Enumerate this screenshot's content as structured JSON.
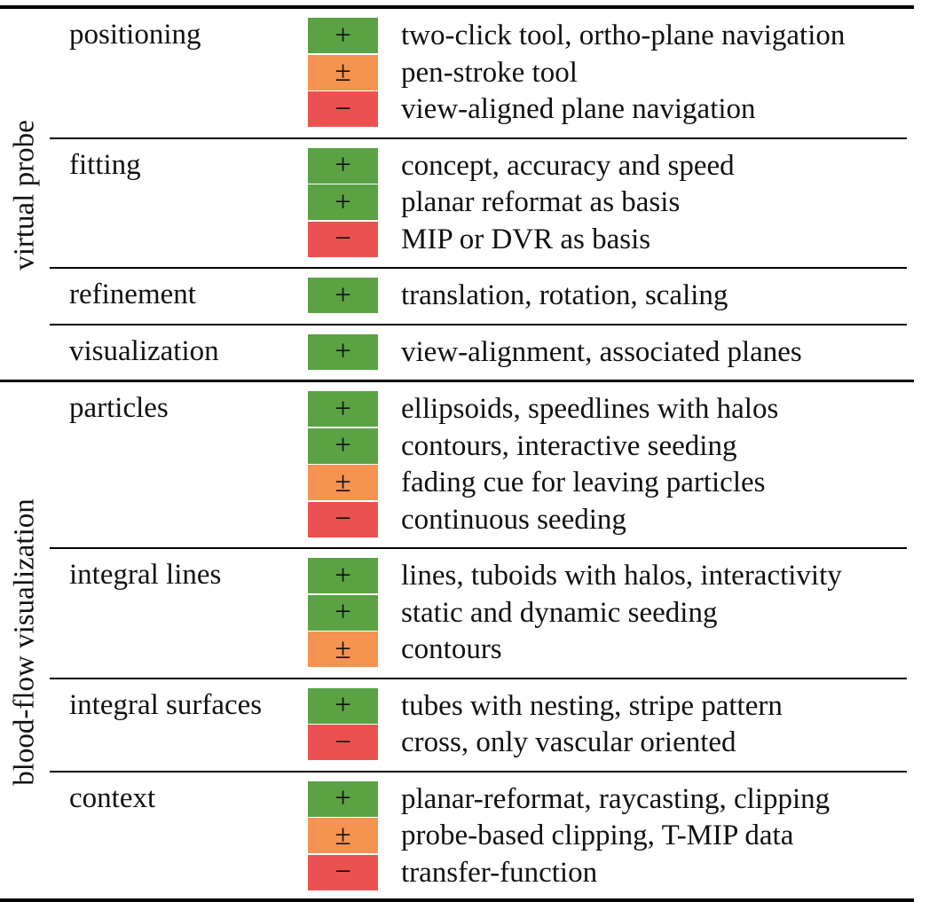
{
  "colors": {
    "plus": "#5aa244",
    "plusminus": "#f69350",
    "minus": "#ea5252"
  },
  "symbols": {
    "plus": "+",
    "plusminus": "±",
    "minus": "−"
  },
  "groups": [
    {
      "label": "virtual probe",
      "categories": [
        {
          "name": "positioning",
          "rows": [
            {
              "rating": "plus",
              "text": "two-click tool, ortho-plane navigation"
            },
            {
              "rating": "plusminus",
              "text": "pen-stroke tool"
            },
            {
              "rating": "minus",
              "text": "view-aligned plane navigation"
            }
          ]
        },
        {
          "name": "fitting",
          "rows": [
            {
              "rating": "plus",
              "text": "concept, accuracy and speed"
            },
            {
              "rating": "plus",
              "text": "planar reformat as basis"
            },
            {
              "rating": "minus",
              "text": "MIP or DVR as basis"
            }
          ]
        },
        {
          "name": "refinement",
          "rows": [
            {
              "rating": "plus",
              "text": "translation, rotation, scaling"
            }
          ]
        },
        {
          "name": "visualization",
          "rows": [
            {
              "rating": "plus",
              "text": "view-alignment, associated planes"
            }
          ]
        }
      ]
    },
    {
      "label": "blood-flow visualization",
      "categories": [
        {
          "name": "particles",
          "rows": [
            {
              "rating": "plus",
              "text": "ellipsoids, speedlines with halos"
            },
            {
              "rating": "plus",
              "text": "contours, interactive seeding"
            },
            {
              "rating": "plusminus",
              "text": "fading cue for leaving particles"
            },
            {
              "rating": "minus",
              "text": "continuous seeding"
            }
          ]
        },
        {
          "name": "integral lines",
          "rows": [
            {
              "rating": "plus",
              "text": "lines, tuboids with halos, interactivity"
            },
            {
              "rating": "plus",
              "text": "static and dynamic seeding"
            },
            {
              "rating": "plusminus",
              "text": "contours"
            }
          ]
        },
        {
          "name": "integral surfaces",
          "rows": [
            {
              "rating": "plus",
              "text": "tubes with nesting, stripe pattern"
            },
            {
              "rating": "minus",
              "text": "cross, only vascular oriented"
            }
          ]
        },
        {
          "name": "context",
          "rows": [
            {
              "rating": "plus",
              "text": "planar-reformat, raycasting, clipping"
            },
            {
              "rating": "plusminus",
              "text": "probe-based clipping, T-MIP data"
            },
            {
              "rating": "minus",
              "text": "transfer-function"
            }
          ]
        }
      ]
    }
  ]
}
